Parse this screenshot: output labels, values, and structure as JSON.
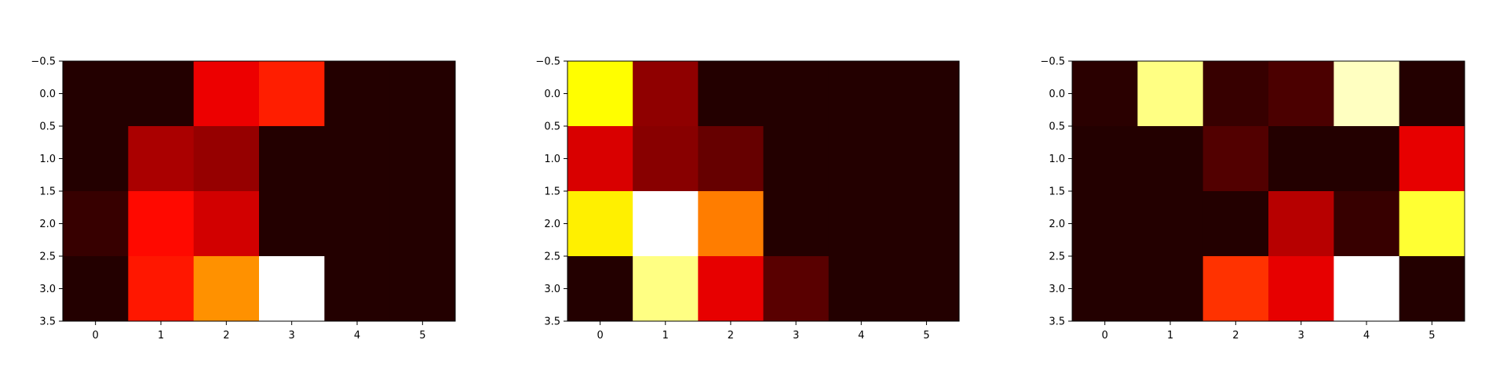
{
  "chart_data": [
    {
      "type": "heatmap",
      "colormap": "hot",
      "x_ticks": [
        "0",
        "1",
        "2",
        "3",
        "4",
        "5"
      ],
      "y_ticks": [
        "−0.5",
        "0.0",
        "0.5",
        "1.0",
        "1.5",
        "2.0",
        "2.5",
        "3.0",
        "3.5"
      ],
      "xlim": [
        -0.5,
        5.5
      ],
      "ylim": [
        3.5,
        -0.5
      ],
      "grid": false,
      "values": [
        [
          0.01,
          0.01,
          0.31,
          0.38,
          0.01,
          0.01
        ],
        [
          0.01,
          0.21,
          0.18,
          0.01,
          0.01,
          0.01
        ],
        [
          0.04,
          0.35,
          0.27,
          0.01,
          0.01,
          0.01
        ],
        [
          0.01,
          0.37,
          0.55,
          1.0,
          0.01,
          0.01
        ]
      ]
    },
    {
      "type": "heatmap",
      "colormap": "hot",
      "x_ticks": [
        "0",
        "1",
        "2",
        "3",
        "4",
        "5"
      ],
      "y_ticks": [
        "−0.5",
        "0.0",
        "0.5",
        "1.0",
        "1.5",
        "2.0",
        "2.5",
        "3.0",
        "3.5"
      ],
      "xlim": [
        -0.5,
        5.5
      ],
      "ylim": [
        3.5,
        -0.5
      ],
      "grid": false,
      "values": [
        [
          0.71,
          0.17,
          0.01,
          0.01,
          0.01,
          0.01
        ],
        [
          0.28,
          0.16,
          0.11,
          0.01,
          0.01,
          0.01
        ],
        [
          0.69,
          1.0,
          0.52,
          0.01,
          0.01,
          0.01
        ],
        [
          0.01,
          0.86,
          0.3,
          0.09,
          0.01,
          0.01
        ]
      ]
    },
    {
      "type": "heatmap",
      "colormap": "hot",
      "x_ticks": [
        "0",
        "1",
        "2",
        "3",
        "4",
        "5"
      ],
      "y_ticks": [
        "−0.5",
        "0.0",
        "0.5",
        "1.0",
        "1.5",
        "2.0",
        "2.5",
        "3.0",
        "3.5"
      ],
      "xlim": [
        -0.5,
        5.5
      ],
      "ylim": [
        3.5,
        -0.5
      ],
      "grid": false,
      "values": [
        [
          0.02,
          0.86,
          0.04,
          0.07,
          0.93,
          0.01
        ],
        [
          0.01,
          0.01,
          0.08,
          0.01,
          0.01,
          0.3
        ],
        [
          0.01,
          0.01,
          0.01,
          0.23,
          0.04,
          0.77
        ],
        [
          0.01,
          0.01,
          0.41,
          0.3,
          1.0,
          0.01
        ]
      ]
    }
  ]
}
